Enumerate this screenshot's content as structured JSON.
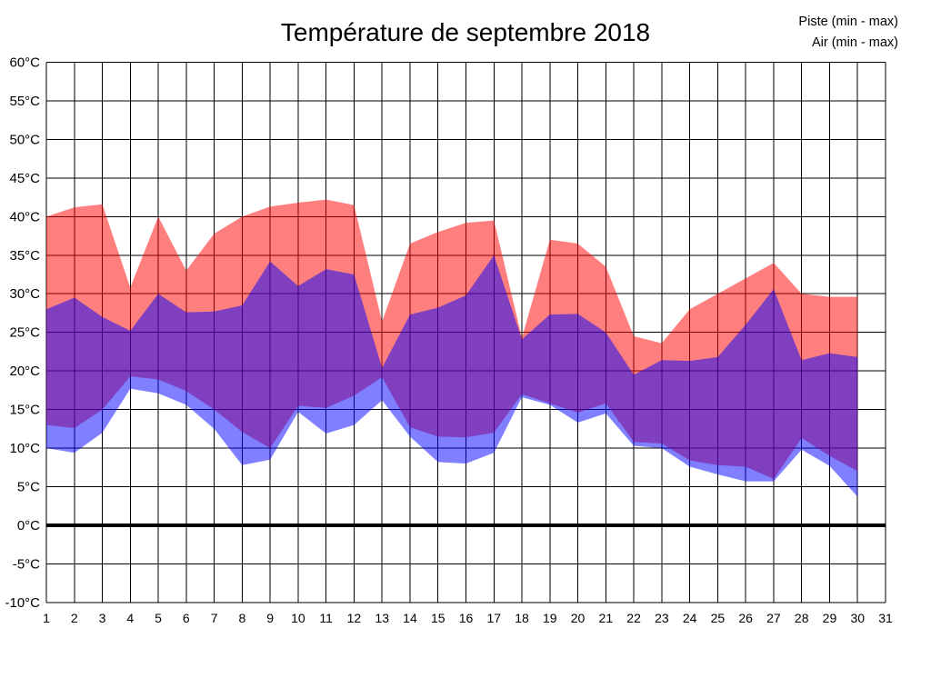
{
  "title": "Température de septembre 2018",
  "legend": [
    {
      "label": "Piste (min - max)",
      "color": "#FF0000"
    },
    {
      "label": "Air (min - max)",
      "color": "#0000FF"
    }
  ],
  "chart_data": {
    "type": "area",
    "title": "Température de septembre 2018",
    "xlabel": "",
    "ylabel": "",
    "xlim": [
      1,
      31
    ],
    "ylim": [
      -10,
      60
    ],
    "xticks": [
      1,
      2,
      3,
      4,
      5,
      6,
      7,
      8,
      9,
      10,
      11,
      12,
      13,
      14,
      15,
      16,
      17,
      18,
      19,
      20,
      21,
      22,
      23,
      24,
      25,
      26,
      27,
      28,
      29,
      30,
      31
    ],
    "yticks": [
      60,
      55,
      50,
      45,
      40,
      35,
      30,
      25,
      20,
      15,
      10,
      5,
      0,
      -5,
      -10
    ],
    "ytick_suffix": "°C",
    "grid": true,
    "grid_color": "#000000",
    "zero_line_value": 0,
    "zero_line_width": 4,
    "background_color": "#FFFFFF",
    "fill_opacity": 0.5,
    "legend_position": "top-right",
    "x": [
      1,
      2,
      3,
      4,
      5,
      6,
      7,
      8,
      9,
      10,
      11,
      12,
      13,
      14,
      15,
      16,
      17,
      18,
      19,
      20,
      21,
      22,
      23,
      24,
      25,
      26,
      27,
      28,
      29,
      30
    ],
    "series": [
      {
        "name": "Piste (min - max)",
        "color": "#FF0000",
        "min": [
          13,
          12.6,
          15,
          19.3,
          18.9,
          17.4,
          15,
          12.1,
          10,
          15.5,
          15.2,
          16.8,
          19.2,
          12.7,
          11.5,
          11.4,
          12,
          17,
          15.8,
          14.6,
          15.8,
          10.8,
          10.6,
          8.4,
          7.8,
          7.6,
          6,
          11.3,
          9,
          7
        ],
        "max": [
          40,
          41.2,
          41.6,
          30.8,
          40,
          33,
          37.8,
          40,
          41.3,
          41.8,
          42.2,
          41.5,
          26.4,
          36.5,
          38,
          39.2,
          39.5,
          24.3,
          37,
          36.5,
          33.5,
          24.5,
          23.6,
          28,
          30,
          32,
          34,
          30,
          29.6,
          29.6
        ]
      },
      {
        "name": "Air (min - max)",
        "color": "#0000FF",
        "min": [
          10,
          9.4,
          12,
          17.7,
          17.1,
          15.6,
          12.5,
          7.8,
          8.5,
          14.7,
          11.9,
          13,
          16.2,
          11.5,
          8.2,
          8,
          9.4,
          16.6,
          15.6,
          13.3,
          14.5,
          10.3,
          10,
          7.6,
          6.6,
          5.7,
          5.7,
          9.8,
          7.7,
          3.7
        ],
        "max": [
          28,
          29.5,
          27,
          25.2,
          30,
          27.6,
          27.7,
          28.5,
          34.2,
          31,
          33.2,
          32.5,
          20.4,
          27.3,
          28.2,
          29.8,
          35,
          24.1,
          27.3,
          27.4,
          25,
          19.5,
          21.4,
          21.3,
          21.8,
          26,
          30.6,
          21.4,
          22.3,
          21.8
        ]
      }
    ]
  }
}
